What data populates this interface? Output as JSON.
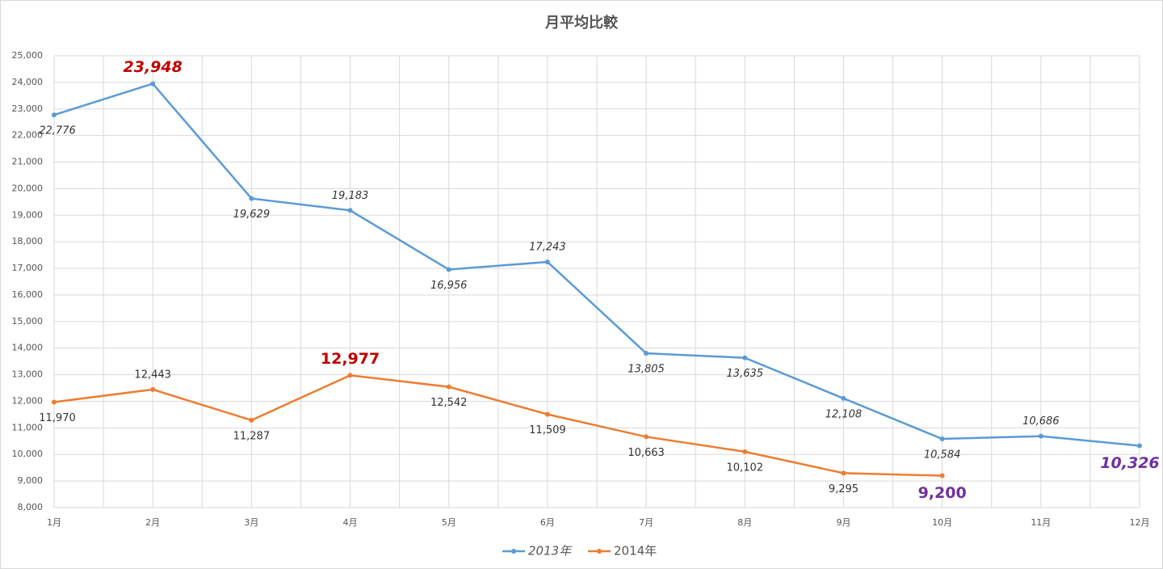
{
  "chart_data": {
    "type": "line",
    "title": "月平均比較",
    "categories": [
      "1月",
      "2月",
      "3月",
      "4月",
      "5月",
      "6月",
      "7月",
      "8月",
      "9月",
      "10月",
      "11月",
      "12月"
    ],
    "series": [
      {
        "name": "2013年",
        "color": "#5b9bd5",
        "italic": true,
        "values": [
          22776,
          23948,
          19629,
          19183,
          16956,
          17243,
          13805,
          13635,
          12108,
          10584,
          10686,
          10326
        ],
        "value_labels": [
          "22,776",
          "23,948",
          "19,629",
          "19,183",
          "16,956",
          "17,243",
          "13,805",
          "13,635",
          "12,108",
          "10,584",
          "10,686",
          "10,326"
        ],
        "label_colors": [
          null,
          "#c00000",
          null,
          null,
          null,
          null,
          null,
          null,
          null,
          null,
          null,
          "#7030a0"
        ]
      },
      {
        "name": "2014年",
        "color": "#ed7d31",
        "italic": false,
        "values": [
          11970,
          12443,
          11287,
          12977,
          12542,
          11509,
          10663,
          10102,
          9295,
          9200,
          null,
          null
        ],
        "value_labels": [
          "11,970",
          "12,443",
          "11,287",
          "12,977",
          "12,542",
          "11,509",
          "10,663",
          "10,102",
          "9,295",
          "9,200",
          null,
          null
        ],
        "label_colors": [
          null,
          null,
          null,
          "#c00000",
          null,
          null,
          null,
          null,
          null,
          "#7030a0",
          null,
          null
        ]
      }
    ],
    "ylim": [
      8000,
      25000
    ],
    "yticks": [
      {
        "value": 8000,
        "label": "8,000"
      },
      {
        "value": 9000,
        "label": "9,000"
      },
      {
        "value": 10000,
        "label": "10,000"
      },
      {
        "value": 11000,
        "label": "11,000"
      },
      {
        "value": 12000,
        "label": "12,000"
      },
      {
        "value": 13000,
        "label": "13,000"
      },
      {
        "value": 14000,
        "label": "14,000"
      },
      {
        "value": 15000,
        "label": "15,000"
      },
      {
        "value": 16000,
        "label": "16,000"
      },
      {
        "value": 17000,
        "label": "17,000"
      },
      {
        "value": 18000,
        "label": "18,000"
      },
      {
        "value": 19000,
        "label": "19,000"
      },
      {
        "value": 20000,
        "label": "20,000"
      },
      {
        "value": 21000,
        "label": "21,000"
      },
      {
        "value": 22000,
        "label": "22,000"
      },
      {
        "value": 23000,
        "label": "23,000"
      },
      {
        "value": 24000,
        "label": "24,000"
      },
      {
        "value": 25000,
        "label": "25,000"
      }
    ],
    "grid": true,
    "legend": "bottom"
  }
}
